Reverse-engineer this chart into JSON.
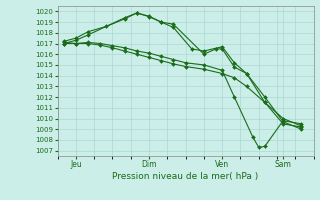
{
  "background_color": "#cceee8",
  "grid_color": "#aad8d0",
  "line_color": "#1a6b1a",
  "xlabel": "Pression niveau de la mer( hPa )",
  "ylim": [
    1006.5,
    1020.5
  ],
  "yticks": [
    1007,
    1008,
    1009,
    1010,
    1011,
    1012,
    1013,
    1014,
    1015,
    1016,
    1017,
    1018,
    1019,
    1020
  ],
  "xtick_labels": [
    "Jeu",
    "Dim",
    "Ven",
    "Sam"
  ],
  "xtick_positions": [
    6,
    30,
    54,
    74
  ],
  "xlim": [
    0,
    84
  ],
  "series": [
    {
      "x": [
        2,
        6,
        10,
        16,
        22,
        26,
        30,
        34,
        38,
        44,
        48,
        54,
        58,
        62,
        68,
        74,
        80
      ],
      "y": [
        1017.2,
        1017.5,
        1018.1,
        1018.6,
        1019.3,
        1019.85,
        1019.55,
        1019.0,
        1018.5,
        1016.5,
        1016.3,
        1016.7,
        1015.2,
        1014.2,
        1011.5,
        1009.5,
        1009.2
      ]
    },
    {
      "x": [
        2,
        6,
        10,
        22,
        26,
        30,
        34,
        38,
        48,
        52,
        54,
        58,
        62,
        68,
        74,
        80
      ],
      "y": [
        1017.0,
        1017.3,
        1017.8,
        1019.4,
        1019.85,
        1019.5,
        1019.0,
        1018.8,
        1016.0,
        1016.5,
        1016.5,
        1014.8,
        1014.2,
        1012.0,
        1009.7,
        1009.0
      ]
    },
    {
      "x": [
        2,
        6,
        10,
        14,
        18,
        22,
        26,
        30,
        34,
        38,
        42,
        48,
        54,
        58,
        64,
        66,
        68,
        74,
        80
      ],
      "y": [
        1017.1,
        1017.0,
        1017.1,
        1017.0,
        1016.8,
        1016.6,
        1016.3,
        1016.1,
        1015.8,
        1015.5,
        1015.2,
        1015.0,
        1014.5,
        1012.0,
        1008.3,
        1007.3,
        1007.4,
        1009.8,
        1009.5
      ]
    },
    {
      "x": [
        2,
        6,
        10,
        14,
        18,
        22,
        26,
        30,
        34,
        38,
        42,
        48,
        54,
        58,
        62,
        68,
        74,
        80
      ],
      "y": [
        1017.0,
        1017.0,
        1017.0,
        1016.85,
        1016.6,
        1016.3,
        1016.0,
        1015.7,
        1015.4,
        1015.1,
        1014.85,
        1014.6,
        1014.2,
        1013.8,
        1013.0,
        1011.5,
        1010.0,
        1009.3
      ]
    }
  ]
}
